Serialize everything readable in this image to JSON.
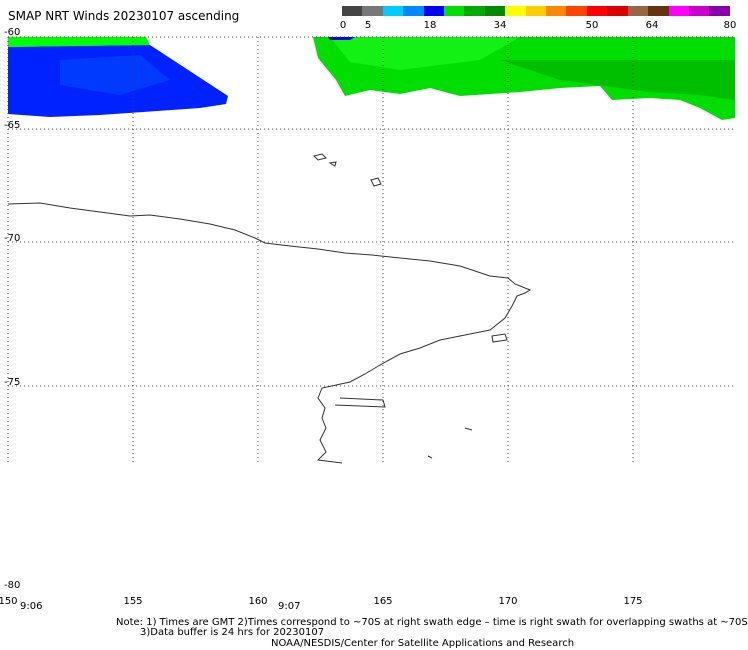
{
  "title": "SMAP NRT Winds 20230107 ascending",
  "colorbar": {
    "labels": [
      "0",
      "5",
      "18",
      "34",
      "50",
      "64",
      "80"
    ],
    "colors": [
      "#444444",
      "#777777",
      "#00ccff",
      "#0088ff",
      "#0000ff",
      "#00dd00",
      "#00aa00",
      "#008800",
      "#ffff00",
      "#ffcc00",
      "#ff8800",
      "#ff4400",
      "#ff0000",
      "#dd0000",
      "#996644",
      "#663311",
      "#ff00ff",
      "#cc00cc",
      "#8800aa"
    ]
  },
  "axes": {
    "lat_labels": [
      "-60",
      "-65",
      "-70",
      "-75",
      "-80"
    ],
    "lon_labels": [
      "150",
      "155",
      "160",
      "165",
      "170",
      "175"
    ],
    "time_labels": [
      "9:06",
      "9:07"
    ]
  },
  "notes": {
    "line1": "Note: 1) Times are GMT 2)Times correspond to ~70S at right swath edge – time is right swath for overlapping swaths at ~70S",
    "line2": "3)Data buffer is 24 hrs for 20230107",
    "line3": "NOAA/NESDIS/Center for Satellite Applications and Research"
  }
}
